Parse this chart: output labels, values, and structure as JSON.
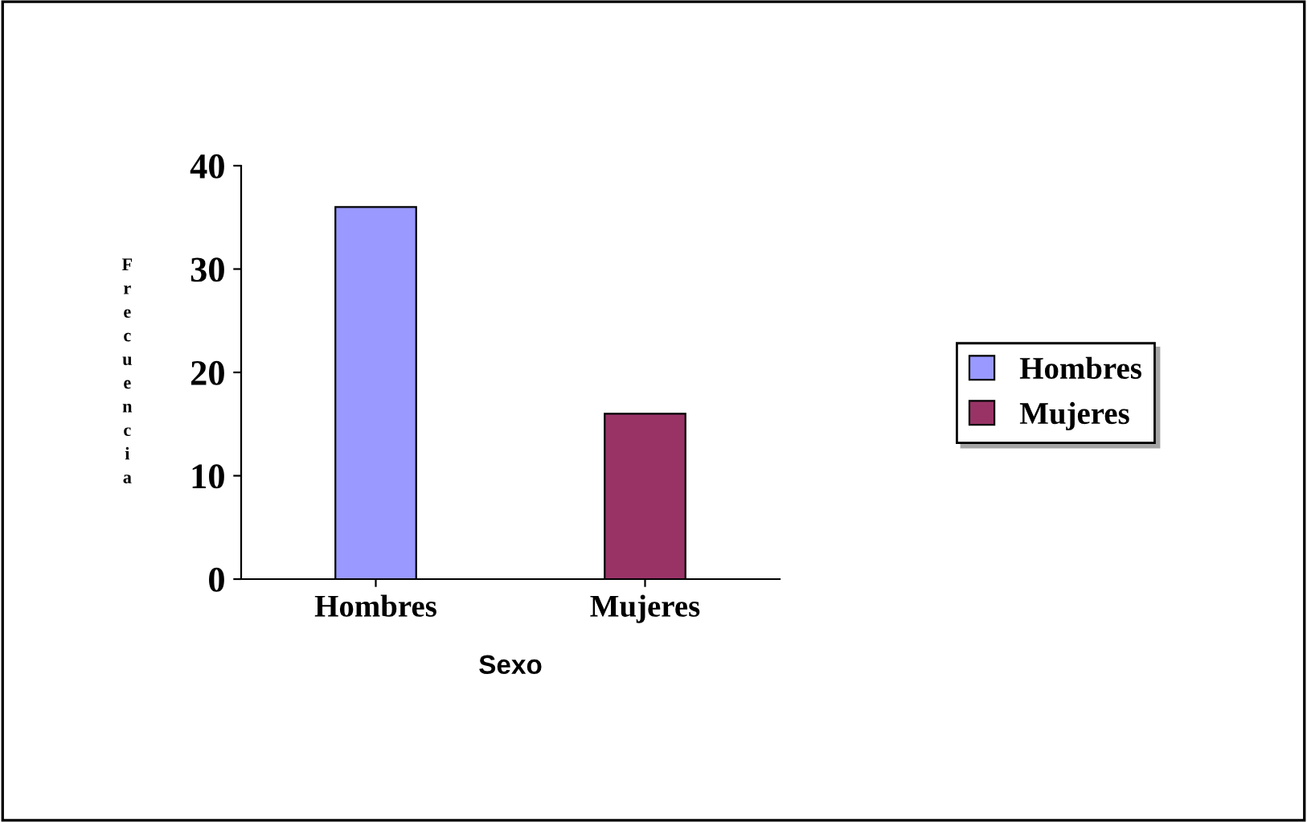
{
  "chart_data": {
    "type": "bar",
    "xlabel": "Sexo",
    "ylabel": "Frecuencia",
    "categories": [
      "Hombres",
      "Mujeres"
    ],
    "series": [
      {
        "name": "Hombres",
        "color": "#9999ff",
        "values": [
          36,
          null
        ]
      },
      {
        "name": "Mujeres",
        "color": "#993366",
        "values": [
          null,
          16
        ]
      }
    ],
    "ylim": [
      0,
      40
    ],
    "yticks": [
      0,
      10,
      20,
      30,
      40
    ],
    "grid": false,
    "legend": "right"
  }
}
